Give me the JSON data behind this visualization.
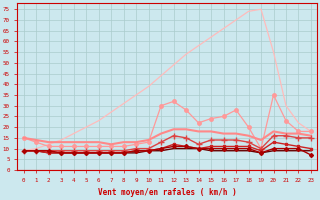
{
  "xlabel": "Vent moyen/en rafales ( km/h )",
  "x": [
    0,
    1,
    2,
    3,
    4,
    5,
    6,
    7,
    8,
    9,
    10,
    11,
    12,
    13,
    14,
    15,
    16,
    17,
    18,
    19,
    20,
    21,
    22,
    23
  ],
  "background_color": "#cce8ee",
  "grid_color": "#aacccc",
  "lines": [
    {
      "y": [
        9,
        10,
        12,
        14,
        17,
        20,
        23,
        27,
        31,
        35,
        39,
        44,
        49,
        54,
        58,
        62,
        66,
        70,
        74,
        75,
        55,
        30,
        22,
        18
      ],
      "color": "#ffbbbb",
      "lw": 0.9,
      "marker": null,
      "ms": 0,
      "zorder": 2
    },
    {
      "y": [
        15,
        13,
        11,
        11,
        11,
        11,
        11,
        11,
        11,
        12,
        13,
        30,
        32,
        28,
        22,
        24,
        25,
        28,
        20,
        10,
        35,
        23,
        18,
        18
      ],
      "color": "#ff9999",
      "lw": 0.9,
      "marker": "o",
      "ms": 2.5,
      "zorder": 3
    },
    {
      "y": [
        15,
        14,
        13,
        13,
        13,
        13,
        13,
        12,
        13,
        13,
        14,
        17,
        19,
        19,
        18,
        18,
        17,
        17,
        16,
        14,
        18,
        17,
        17,
        16
      ],
      "color": "#ff8888",
      "lw": 1.5,
      "marker": null,
      "ms": 0,
      "zorder": 3
    },
    {
      "y": [
        9,
        9,
        9,
        9,
        9,
        9,
        9,
        9,
        9,
        10,
        10,
        13,
        16,
        15,
        12,
        14,
        14,
        14,
        13,
        10,
        16,
        16,
        15,
        15
      ],
      "color": "#dd4444",
      "lw": 1.0,
      "marker": "+",
      "ms": 4,
      "zorder": 4
    },
    {
      "y": [
        9,
        9,
        8,
        8,
        8,
        8,
        8,
        8,
        8,
        9,
        9,
        10,
        12,
        11,
        10,
        11,
        11,
        11,
        11,
        9,
        13,
        12,
        11,
        10
      ],
      "color": "#cc2222",
      "lw": 1.0,
      "marker": "s",
      "ms": 2,
      "zorder": 4
    },
    {
      "y": [
        9,
        9,
        9,
        8,
        8,
        8,
        8,
        8,
        8,
        9,
        9,
        10,
        11,
        11,
        10,
        10,
        10,
        10,
        10,
        8,
        10,
        10,
        10,
        7
      ],
      "color": "#aa0000",
      "lw": 1.0,
      "marker": "D",
      "ms": 2,
      "zorder": 4
    },
    {
      "y": [
        9,
        9,
        8,
        8,
        8,
        8,
        8,
        8,
        8,
        8,
        9,
        9,
        10,
        10,
        10,
        9,
        9,
        9,
        9,
        8,
        9,
        9,
        9,
        9
      ],
      "color": "#660000",
      "lw": 1.0,
      "marker": null,
      "ms": 0,
      "zorder": 3
    }
  ],
  "yticks": [
    0,
    5,
    10,
    15,
    20,
    25,
    30,
    35,
    40,
    45,
    50,
    55,
    60,
    65,
    70,
    75
  ],
  "ylim": [
    0,
    78
  ],
  "xlim": [
    -0.5,
    23.5
  ]
}
